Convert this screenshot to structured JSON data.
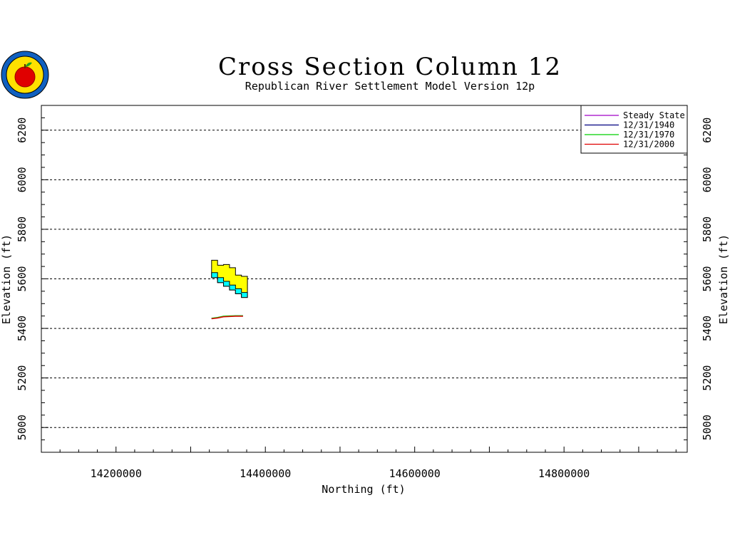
{
  "chart_data": {
    "type": "line",
    "title": "Cross Section Column 12",
    "subtitle": "Republican River Settlement Model Version 12p",
    "xlabel": "Northing (ft)",
    "ylabel": "Elevation (ft)",
    "xlim": [
      14100000,
      14965000
    ],
    "ylim": [
      4900,
      6300
    ],
    "x_ticks": [
      14200000,
      14400000,
      14600000,
      14800000
    ],
    "y_ticks": [
      5000,
      5200,
      5400,
      5600,
      5800,
      6000,
      6200
    ],
    "grid": "horizontal-dashed",
    "legend_position": "top-right",
    "layers": {
      "yellow_fill_color": "#ffff00",
      "cyan_fill_color": "#00ffff",
      "x": [
        14328000,
        14336000,
        14344000,
        14352000,
        14360000,
        14368000
      ],
      "top": [
        5675,
        5655,
        5658,
        5645,
        5615,
        5610
      ],
      "cyan_top": [
        5625,
        5605,
        5590,
        5575,
        5560,
        5545
      ],
      "cyan_bottom": [
        5605,
        5585,
        5570,
        5555,
        5540,
        5525
      ],
      "bottom": [
        5605,
        5585,
        5570,
        5555,
        5540,
        5525
      ]
    },
    "series": [
      {
        "name": "Steady State",
        "color": "#a000c8",
        "x": [
          14328000,
          14336000,
          14344000,
          14352000,
          14360000,
          14370000
        ],
        "y": [
          5440,
          5443,
          5448,
          5449,
          5450,
          5450
        ]
      },
      {
        "name": "12/31/1940",
        "color": "#000080",
        "x": [
          14328000,
          14336000,
          14344000,
          14352000,
          14360000,
          14370000
        ],
        "y": [
          5440,
          5443,
          5448,
          5449,
          5450,
          5450
        ]
      },
      {
        "name": "12/31/1970",
        "color": "#00d000",
        "x": [
          14328000,
          14336000,
          14344000,
          14352000,
          14360000,
          14370000
        ],
        "y": [
          5441,
          5444,
          5449,
          5450,
          5451,
          5451
        ]
      },
      {
        "name": "12/31/2000",
        "color": "#e00000",
        "x": [
          14328000,
          14336000,
          14344000,
          14352000,
          14360000,
          14370000
        ],
        "y": [
          5439,
          5442,
          5447,
          5448,
          5449,
          5449
        ]
      }
    ]
  },
  "logo": {
    "name": "state-seal"
  }
}
